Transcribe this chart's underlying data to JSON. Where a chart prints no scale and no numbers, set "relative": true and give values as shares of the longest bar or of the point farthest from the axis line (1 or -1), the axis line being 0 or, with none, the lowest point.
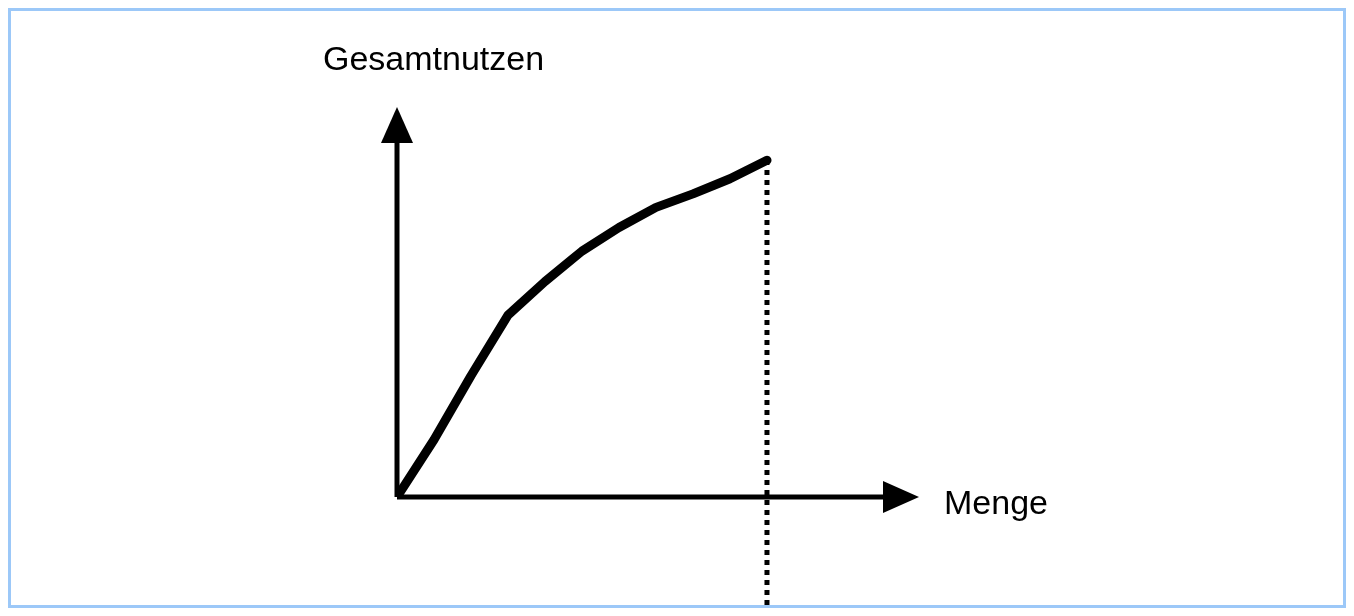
{
  "chart_data": {
    "type": "line",
    "relative": true,
    "xlabel": "Menge",
    "ylabel": "Gesamtnutzen",
    "categories": [
      null,
      null,
      null,
      null,
      null,
      null,
      null,
      null,
      null,
      null,
      null
    ],
    "series": [
      {
        "color": "#000000",
        "values": [
          0,
          0.17,
          0.36,
          0.54,
          0.64,
          0.73,
          0.8,
          0.86,
          0.9,
          0.945,
          1
        ]
      }
    ],
    "marker": "none",
    "line_style": "solid",
    "grid": false,
    "legend": false
  }
}
